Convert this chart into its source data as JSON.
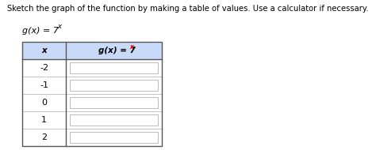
{
  "title": "Sketch the graph of the function by making a table of values. Use a calculator if necessary.",
  "col1_header": "x",
  "col2_header_black": "g(x) = 7",
  "col2_header_red": "x",
  "func_black": "g(x) = 7",
  "func_red": "x",
  "x_values": [
    "-2",
    "-1",
    "0",
    "1",
    "2"
  ],
  "header_bg": "#c9daf8",
  "table_border": "#555555",
  "cell_border": "#bbbbbb",
  "value_box_bg": "#ffffff",
  "value_box_border": "#bbbbbb",
  "title_fontsize": 7.2,
  "header_fontsize": 7.5,
  "cell_fontsize": 8,
  "func_label_fontsize": 8,
  "background": "#ffffff"
}
